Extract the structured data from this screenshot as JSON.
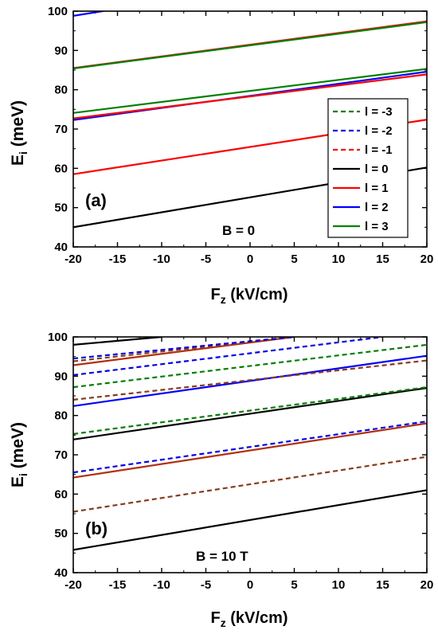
{
  "chart_data": [
    {
      "type": "line",
      "panel_label": "(a)",
      "annotation": "B = 0",
      "xlabel": "F",
      "xlabel_sub": "z",
      "xlabel_unit": " (kV/cm)",
      "ylabel": "E",
      "ylabel_sub": "i",
      "ylabel_unit": " (meV)",
      "xlim": [
        -20,
        20
      ],
      "ylim": [
        40,
        100
      ],
      "xticks": [
        -20,
        -15,
        -10,
        -5,
        0,
        5,
        10,
        15,
        20
      ],
      "yticks": [
        40,
        50,
        60,
        70,
        80,
        90,
        100
      ],
      "legend_position": "right",
      "legend": [
        {
          "label": "l = -3",
          "color": "#008000",
          "dash": "dashed"
        },
        {
          "label": "l = -2",
          "color": "#0000ff",
          "dash": "dashed"
        },
        {
          "label": "l = -1",
          "color": "#ff0000",
          "dash": "dashed"
        },
        {
          "label": "l = 0",
          "color": "#000000",
          "dash": "solid"
        },
        {
          "label": "l = 1",
          "color": "#ff0000",
          "dash": "solid"
        },
        {
          "label": "l = 2",
          "color": "#0000ff",
          "dash": "solid"
        },
        {
          "label": "l = 3",
          "color": "#008000",
          "dash": "solid"
        }
      ],
      "series": [
        {
          "color": "#000000",
          "dash": "solid",
          "x": [
            -20,
            20
          ],
          "y": [
            45.0,
            60.2
          ]
        },
        {
          "color": "#ff0000",
          "dash": "solid",
          "x": [
            -20,
            20
          ],
          "y": [
            58.5,
            72.4
          ]
        },
        {
          "color": "#0000ff",
          "dash": "solid",
          "x": [
            -20,
            20
          ],
          "y": [
            72.3,
            84.6
          ]
        },
        {
          "color": "#ff0000",
          "dash": "solid",
          "x": [
            -20,
            20
          ],
          "y": [
            72.7,
            83.9
          ]
        },
        {
          "color": "#008000",
          "dash": "solid",
          "x": [
            -20,
            20
          ],
          "y": [
            74.1,
            85.3
          ]
        },
        {
          "color": "#ff0000",
          "dash": "solid",
          "x": [
            -20,
            20
          ],
          "y": [
            85.5,
            97.4
          ]
        },
        {
          "color": "#008000",
          "dash": "solid",
          "x": [
            -20,
            20
          ],
          "y": [
            85.4,
            97.2
          ]
        },
        {
          "color": "#0000ff",
          "dash": "solid",
          "x": [
            -20,
            -15
          ],
          "y": [
            98.8,
            100.6
          ]
        }
      ]
    },
    {
      "type": "line",
      "panel_label": "(b)",
      "annotation": "B = 10 T",
      "xlabel": "F",
      "xlabel_sub": "z",
      "xlabel_unit": " (kV/cm)",
      "ylabel": "E",
      "ylabel_sub": "i",
      "ylabel_unit": " (meV)",
      "xlim": [
        -20,
        20
      ],
      "ylim": [
        40,
        100
      ],
      "xticks": [
        -20,
        -15,
        -10,
        -5,
        0,
        5,
        10,
        15,
        20
      ],
      "yticks": [
        40,
        50,
        60,
        70,
        80,
        90,
        100
      ],
      "series": [
        {
          "color": "#000000",
          "dash": "solid",
          "x": [
            -20,
            20
          ],
          "y": [
            45.8,
            61.0
          ]
        },
        {
          "color": "#8b3a1a",
          "dash": "dashed",
          "x": [
            -20,
            20
          ],
          "y": [
            55.5,
            69.5
          ]
        },
        {
          "color": "#b03010",
          "dash": "solid",
          "x": [
            -20,
            20
          ],
          "y": [
            64.2,
            78.0
          ]
        },
        {
          "color": "#0000ff",
          "dash": "dashed",
          "x": [
            -20,
            20
          ],
          "y": [
            65.5,
            78.5
          ]
        },
        {
          "color": "#000000",
          "dash": "solid",
          "x": [
            -20,
            20
          ],
          "y": [
            73.9,
            87.0
          ]
        },
        {
          "color": "#008000",
          "dash": "dashed",
          "x": [
            -20,
            20
          ],
          "y": [
            75.3,
            87.2
          ]
        },
        {
          "color": "#0000ff",
          "dash": "solid",
          "x": [
            -20,
            20
          ],
          "y": [
            82.4,
            95.2
          ]
        },
        {
          "color": "#8b3a1a",
          "dash": "dashed",
          "x": [
            -20,
            20
          ],
          "y": [
            84.0,
            94.0
          ]
        },
        {
          "color": "#008000",
          "dash": "dashed",
          "x": [
            -20,
            20
          ],
          "y": [
            87.2,
            98.0
          ]
        },
        {
          "color": "#0000ff",
          "dash": "dashed",
          "x": [
            -20,
            15
          ],
          "y": [
            90.3,
            100.0
          ]
        },
        {
          "color": "#b03010",
          "dash": "solid",
          "x": [
            -20,
            5
          ],
          "y": [
            92.8,
            100.0
          ]
        },
        {
          "color": "#8b3a1a",
          "dash": "dashed",
          "x": [
            -20,
            5
          ],
          "y": [
            93.8,
            100.0
          ]
        },
        {
          "color": "#0000ff",
          "dash": "dashed",
          "x": [
            -20,
            5
          ],
          "y": [
            94.5,
            100.0
          ]
        },
        {
          "color": "#000000",
          "dash": "solid",
          "x": [
            -20,
            -10
          ],
          "y": [
            98.0,
            100.0
          ]
        }
      ]
    }
  ]
}
